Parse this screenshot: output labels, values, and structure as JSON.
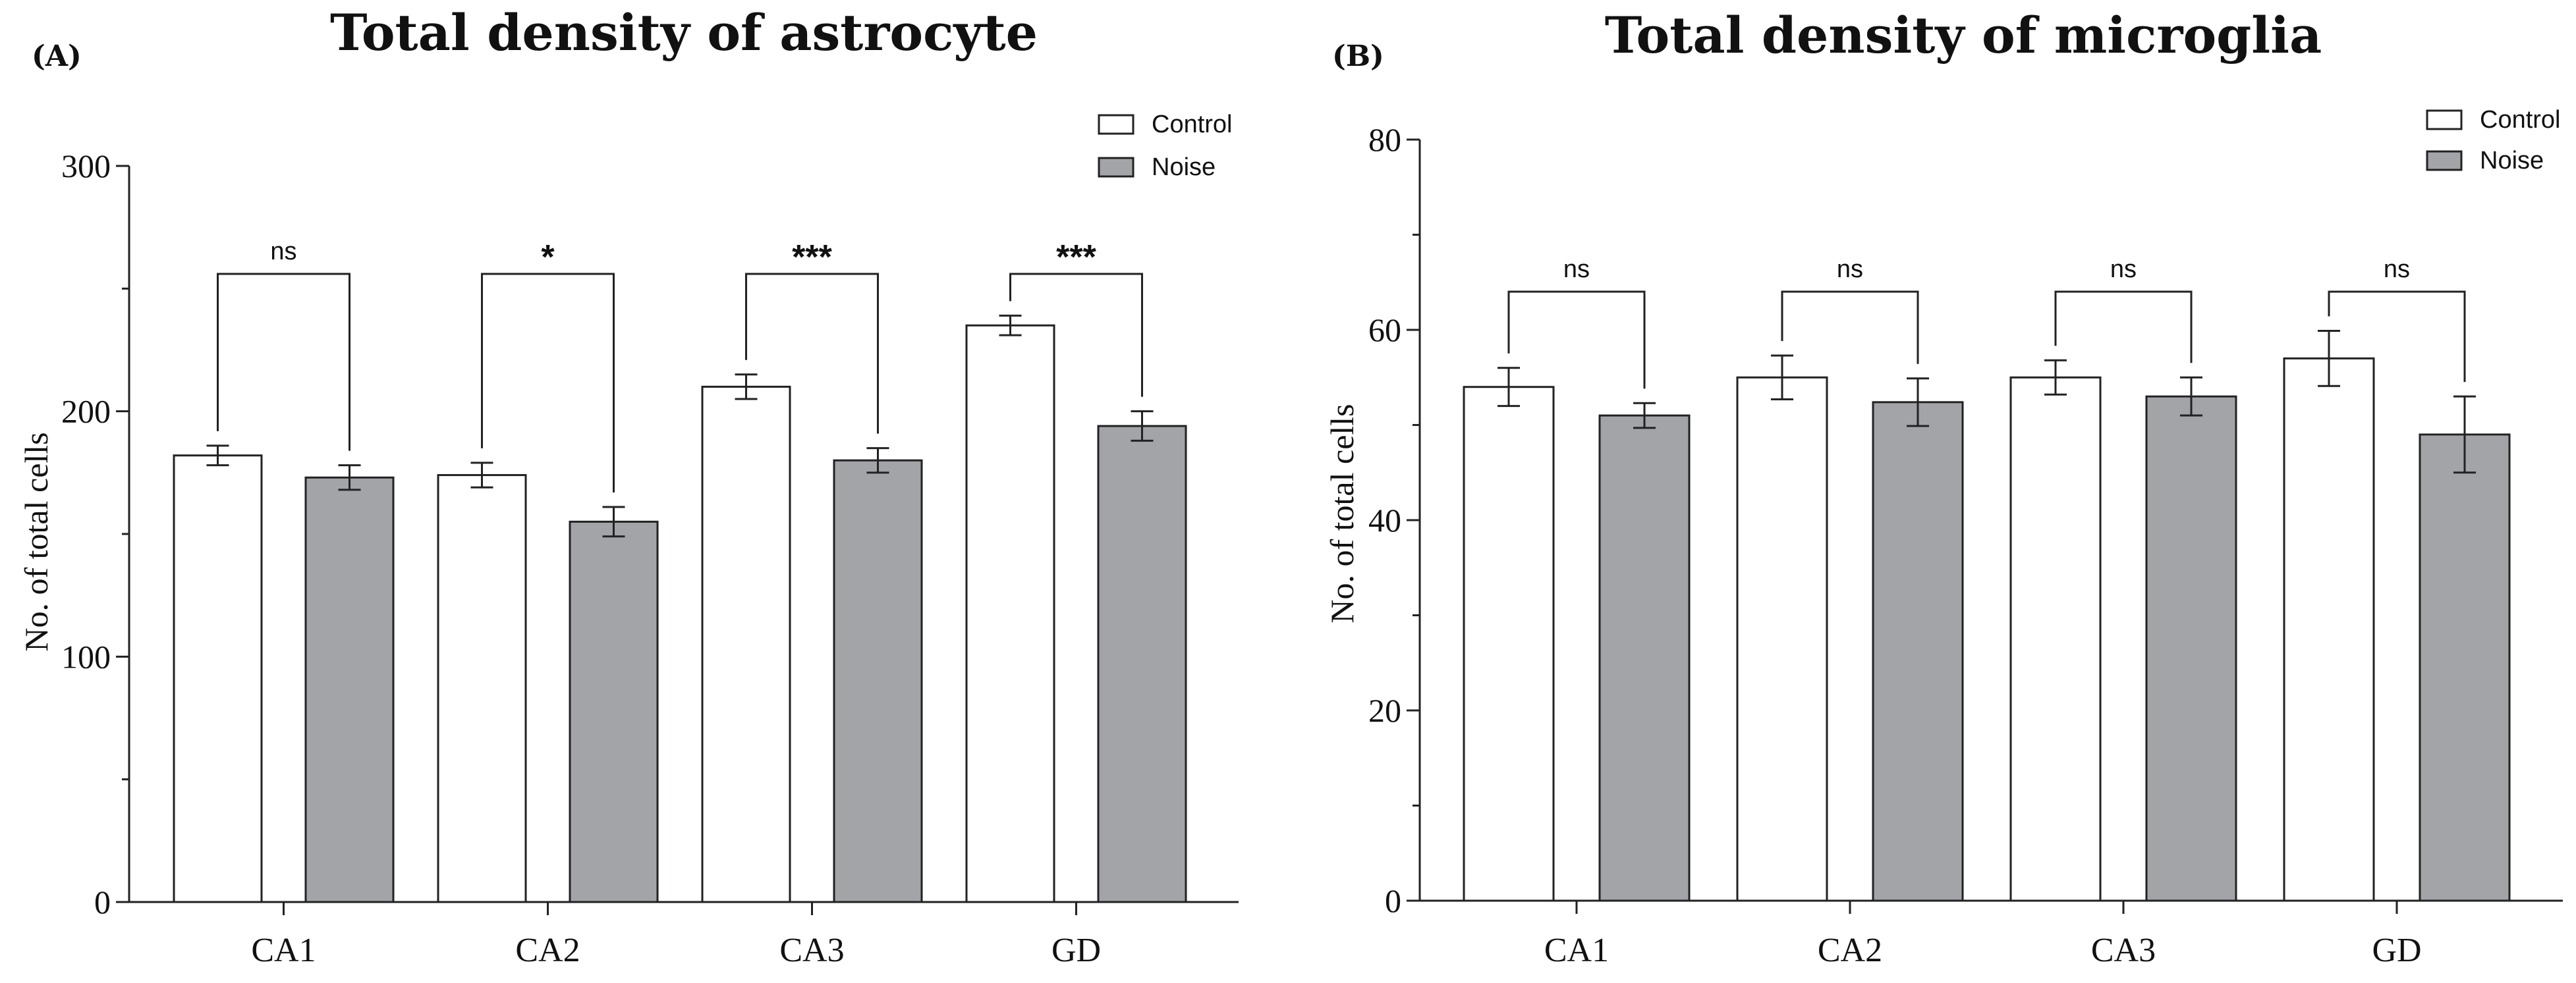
{
  "colors": {
    "control_fill": "#ffffff",
    "noise_fill": "#a3a4a8",
    "stroke": "#222222"
  },
  "chart_data": [
    {
      "panel_label": "(A)",
      "type": "bar",
      "title": "Total density of astrocyte",
      "xlabel": "",
      "ylabel": "No. of total cells",
      "ylim": [
        0,
        300
      ],
      "yticks": [
        0,
        100,
        200,
        300
      ],
      "categories": [
        "CA1",
        "CA2",
        "CA3",
        "GD"
      ],
      "series": [
        {
          "name": "Control",
          "values": [
            182,
            174,
            210,
            235
          ],
          "errors": [
            4,
            5,
            5,
            4
          ]
        },
        {
          "name": "Noise",
          "values": [
            173,
            155,
            180,
            194
          ],
          "errors": [
            5,
            6,
            5,
            6
          ]
        }
      ],
      "significance": [
        "ns",
        "*",
        "***",
        "***"
      ],
      "legend": [
        "Control",
        "Noise"
      ],
      "legend_position": "top-right"
    },
    {
      "panel_label": "(B)",
      "type": "bar",
      "title": "Total density of microglia",
      "xlabel": "",
      "ylabel": "No. of total cells",
      "ylim": [
        0,
        80
      ],
      "yticks": [
        0,
        20,
        40,
        60,
        80
      ],
      "categories": [
        "CA1",
        "CA2",
        "CA3",
        "GD"
      ],
      "series": [
        {
          "name": "Control",
          "values": [
            54,
            55,
            55,
            57
          ],
          "errors": [
            2,
            2.3,
            1.8,
            2.9
          ]
        },
        {
          "name": "Noise",
          "values": [
            51,
            52.4,
            53,
            49
          ],
          "errors": [
            1.3,
            2.5,
            2,
            4
          ]
        }
      ],
      "significance": [
        "ns",
        "ns",
        "ns",
        "ns"
      ],
      "legend": [
        "Control",
        "Noise"
      ],
      "legend_position": "top-right"
    }
  ]
}
